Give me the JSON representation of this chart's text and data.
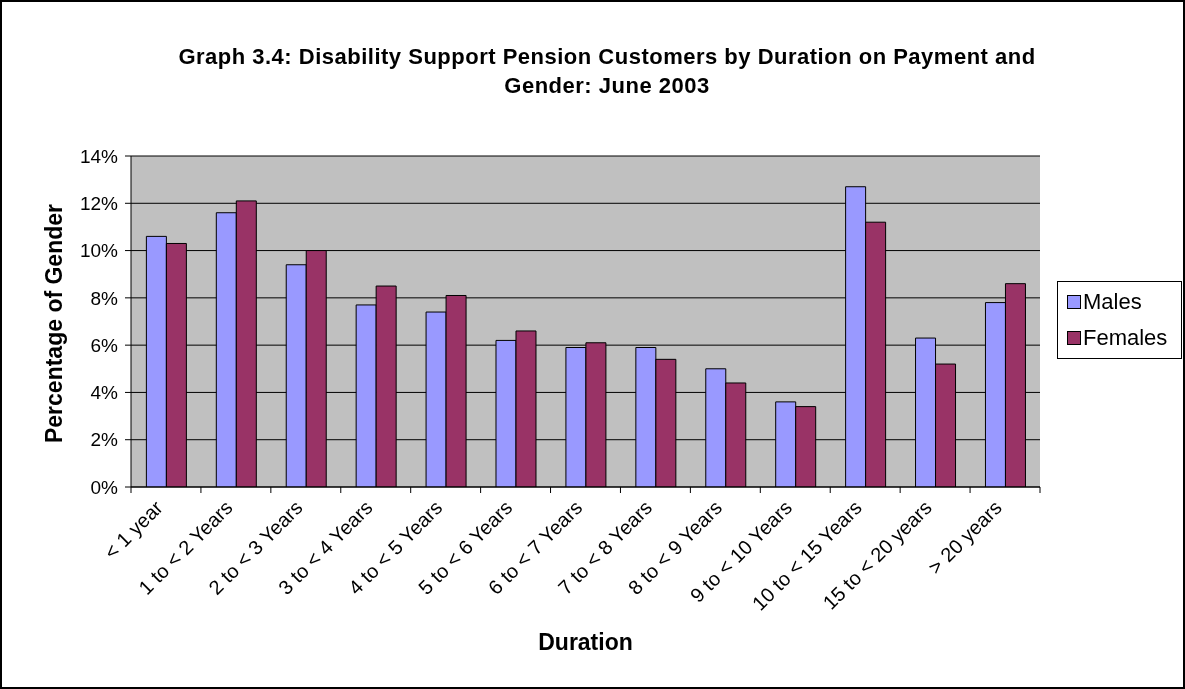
{
  "chart_data": {
    "type": "bar",
    "title": "Graph 3.4: Disability Support Pension Customers by Duration on Payment and Gender: June 2003",
    "xlabel": "Duration",
    "ylabel": "Percentage of Gender",
    "categories": [
      "< 1 year",
      "1 to < 2 Years",
      "2 to < 3 Years",
      "3 to < 4 Years",
      "4 to < 5 Years",
      "5 to < 6 Years",
      "6 to < 7 Years",
      "7 to < 8 Years",
      "8 to < 9 Years",
      "9 to < 10 Years",
      "10 to < 15 Years",
      "15 to < 20 years",
      "> 20 years"
    ],
    "series": [
      {
        "name": "Males",
        "color": "#9999ff",
        "values": [
          10.6,
          11.6,
          9.4,
          7.7,
          7.4,
          6.2,
          5.9,
          5.9,
          5.0,
          3.6,
          12.7,
          6.3,
          7.8
        ]
      },
      {
        "name": "Females",
        "color": "#993366",
        "values": [
          10.3,
          12.1,
          10.0,
          8.5,
          8.1,
          6.6,
          6.1,
          5.4,
          4.4,
          3.4,
          11.2,
          5.2,
          8.6
        ]
      }
    ],
    "ylim": [
      0,
      14
    ],
    "yticks": [
      {
        "value": 0,
        "label": "0%"
      },
      {
        "value": 2,
        "label": "2%"
      },
      {
        "value": 4,
        "label": "4%"
      },
      {
        "value": 6,
        "label": "6%"
      },
      {
        "value": 8,
        "label": "8%"
      },
      {
        "value": 10,
        "label": "10%"
      },
      {
        "value": 12,
        "label": "12%"
      },
      {
        "value": 14,
        "label": "14%"
      }
    ],
    "grid": "y",
    "legend": "right"
  }
}
